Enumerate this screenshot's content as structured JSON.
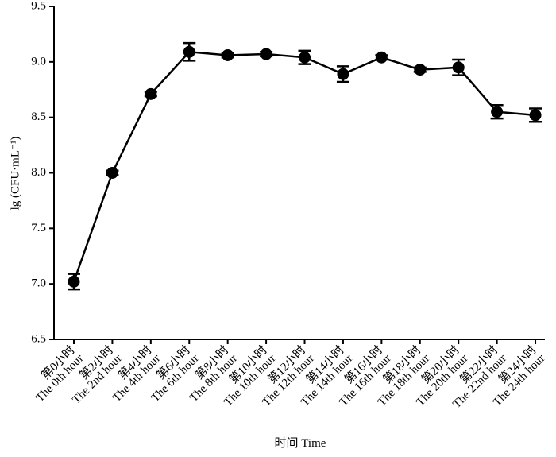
{
  "chart_data": {
    "type": "line",
    "y_label": "lg (CFU·mL⁻¹)",
    "x_label": "时间 Time",
    "categories": [
      [
        "第0小时",
        "The 0th hour"
      ],
      [
        "第2小时",
        "The 2nd hour"
      ],
      [
        "第4小时",
        "The 4th hour"
      ],
      [
        "第6小时",
        "The 6th hour"
      ],
      [
        "第8小时",
        "The 8th hour"
      ],
      [
        "第10小时",
        "The 10th hour"
      ],
      [
        "第12小时",
        "The 12th hour"
      ],
      [
        "第14小时",
        "The 14th hour"
      ],
      [
        "第16小时",
        "The 16th hour"
      ],
      [
        "第18小时",
        "The 18th hour"
      ],
      [
        "第20小时",
        "The 20th hour"
      ],
      [
        "第22小时",
        "The 22nd hour"
      ],
      [
        "第24小时",
        "The 24th hour"
      ]
    ],
    "values": [
      7.02,
      8.0,
      8.71,
      9.09,
      9.06,
      9.07,
      9.04,
      8.89,
      9.04,
      8.93,
      8.95,
      8.55,
      8.52
    ],
    "errors": [
      0.07,
      0.02,
      0.02,
      0.08,
      0.02,
      0.02,
      0.06,
      0.07,
      0.02,
      0.02,
      0.07,
      0.06,
      0.06
    ],
    "color": "#000000",
    "ylim": [
      6.5,
      9.5
    ],
    "yticks": [
      6.5,
      {
        "value": 7,
        "label": "7.0"
      },
      7.5,
      {
        "value": 8,
        "label": "8.0"
      },
      8.5,
      {
        "value": 9,
        "label": "9.0"
      },
      9.5
    ]
  }
}
